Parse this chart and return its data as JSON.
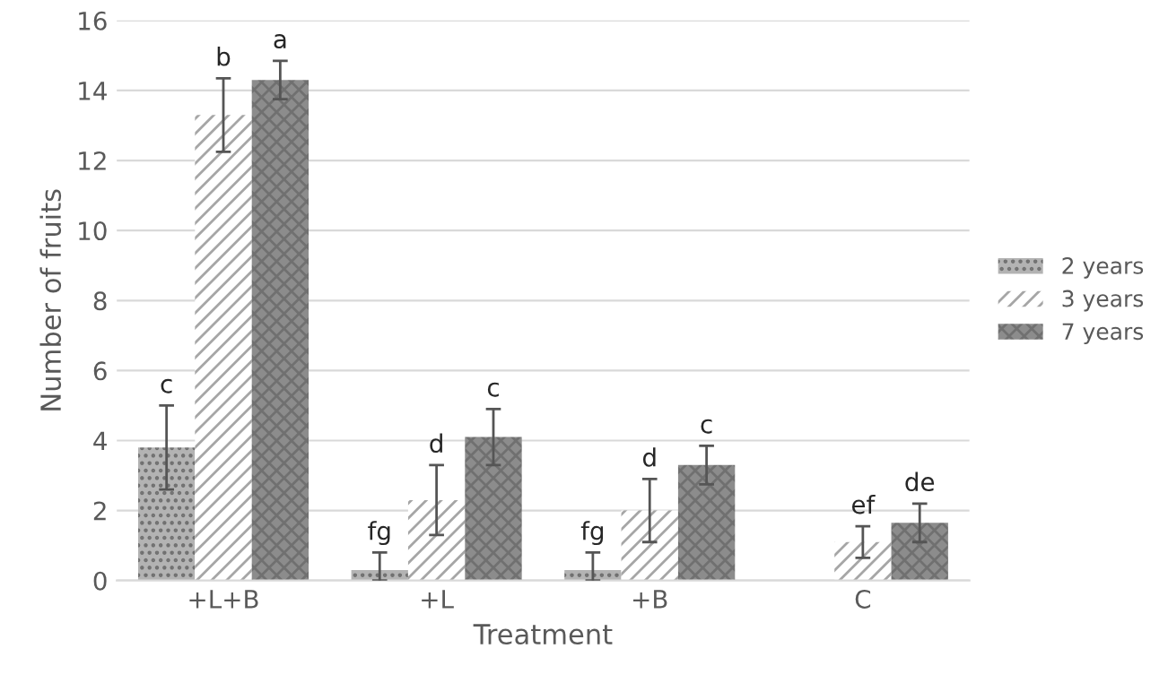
{
  "chart_data": {
    "type": "bar",
    "xlabel": "Treatment",
    "ylabel": "Number of fruits",
    "categories": [
      "+L+B",
      "+L",
      "+B",
      "C"
    ],
    "series": [
      {
        "name": "2 years",
        "color": "#b3b3b3",
        "values": [
          3.8,
          0.3,
          0.3,
          null
        ],
        "errors": [
          1.2,
          [
            0,
            0.8
          ],
          [
            0,
            0.8
          ],
          null
        ],
        "value_labels": [
          "c",
          "fg",
          "fg",
          null
        ]
      },
      {
        "name": "3 years",
        "color": "#a6a6a6",
        "values": [
          13.3,
          2.3,
          2.0,
          1.1
        ],
        "errors": [
          1.05,
          1.0,
          0.9,
          0.45
        ],
        "value_labels": [
          "b",
          "d",
          "d",
          "ef"
        ]
      },
      {
        "name": "7 years",
        "color": "#8c8c8c",
        "values": [
          14.3,
          4.1,
          3.3,
          1.65
        ],
        "errors": [
          0.55,
          0.8,
          0.55,
          0.55
        ],
        "value_labels": [
          "a",
          "c",
          "c",
          "de"
        ]
      }
    ],
    "ylim": [
      0,
      16
    ],
    "yticks": [
      0,
      2,
      4,
      6,
      8,
      10,
      12,
      14,
      16
    ],
    "grid": "y",
    "legend": "right"
  }
}
